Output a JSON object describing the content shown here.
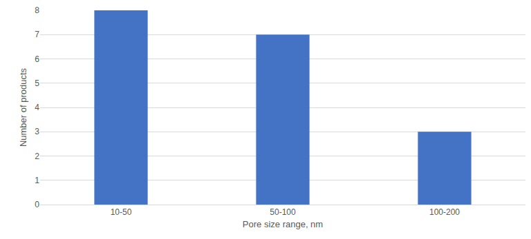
{
  "chart_data": {
    "type": "bar",
    "x_label": "Pore size range, nm",
    "y_label": "Number of products",
    "categories": [
      "10-50",
      "50-100",
      "100-200"
    ],
    "values": [
      8,
      7,
      3
    ],
    "color": "#4472c4",
    "ylim": [
      0,
      8
    ],
    "yticks": [
      0,
      1,
      2,
      3,
      4,
      5,
      6,
      7,
      8
    ],
    "grid": true
  }
}
